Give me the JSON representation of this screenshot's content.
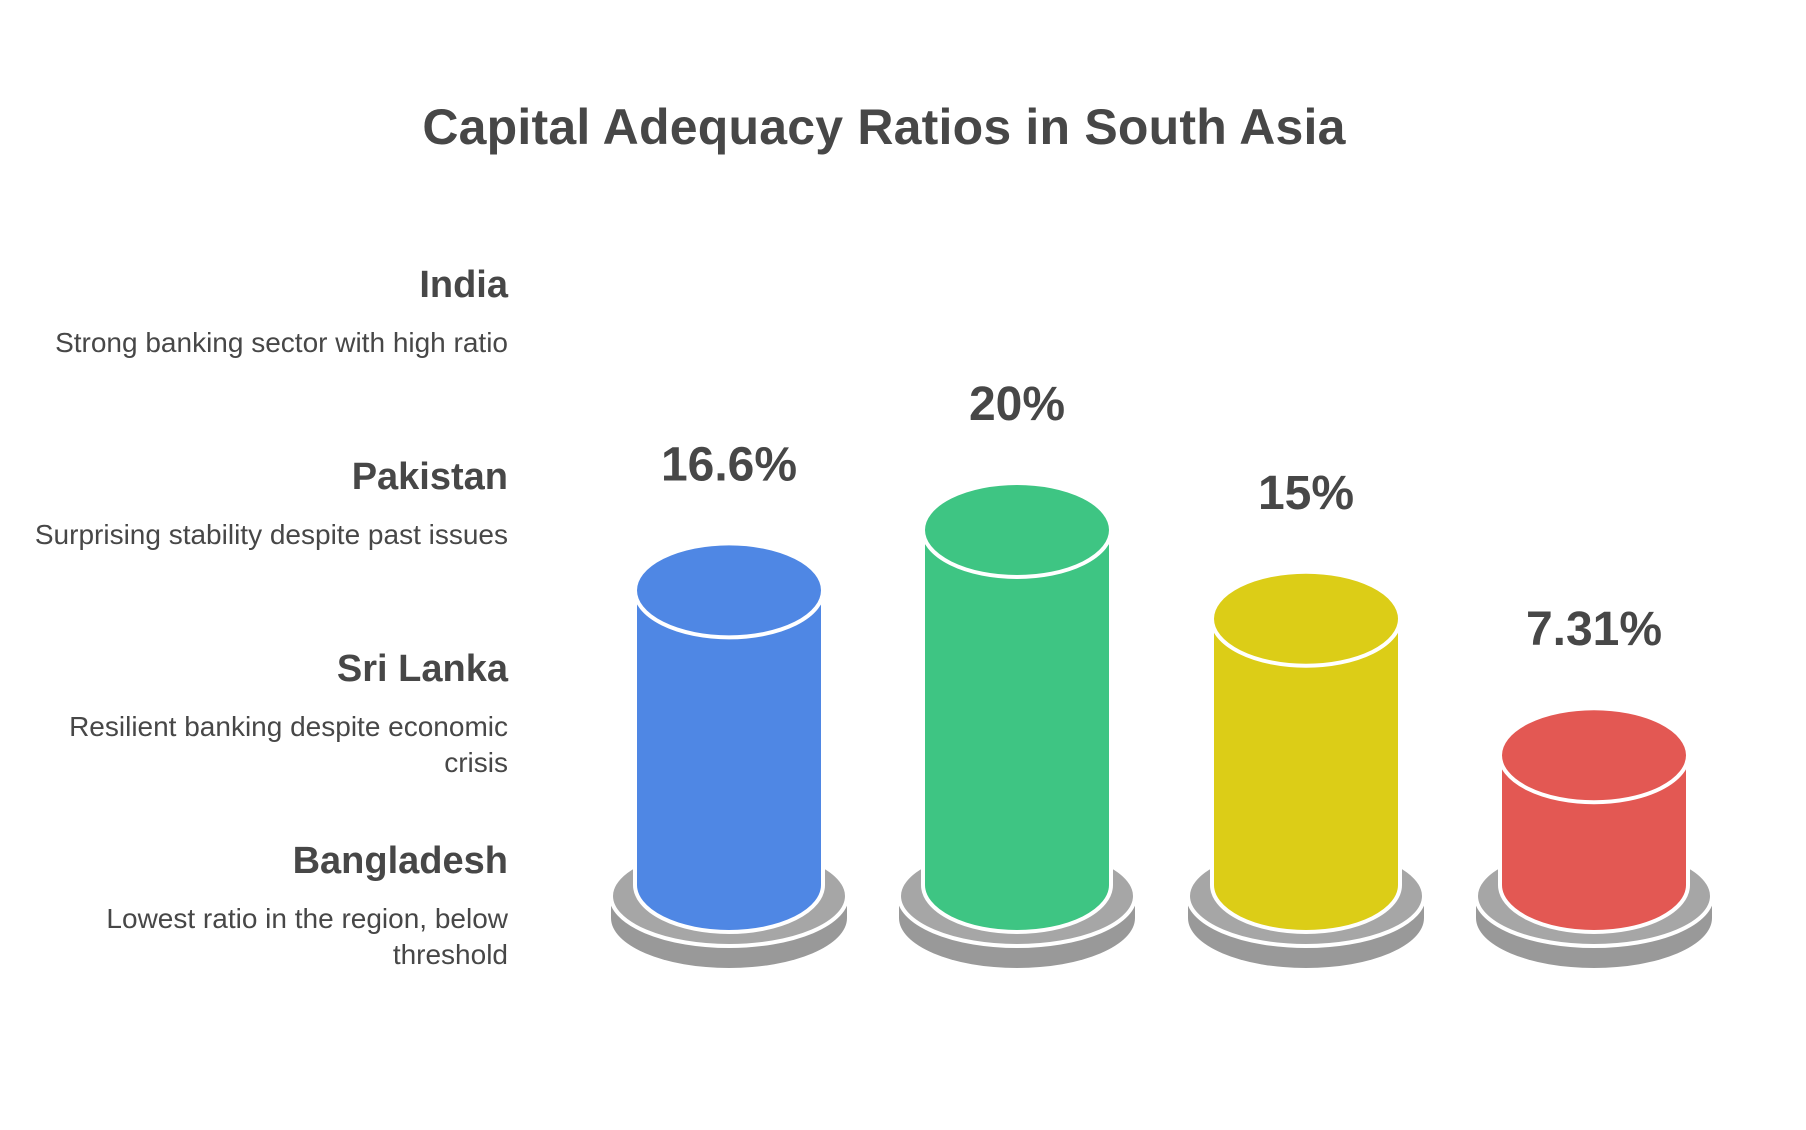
{
  "title": "Capital Adequacy Ratios in South Asia",
  "legend": [
    {
      "name": "India",
      "desc": "Strong banking sector with high ratio"
    },
    {
      "name": "Pakistan",
      "desc": "Surprising stability despite past issues"
    },
    {
      "name": "Sri Lanka",
      "desc": "Resilient banking despite economic crisis"
    },
    {
      "name": "Bangladesh",
      "desc": "Lowest ratio in the region, below threshold"
    }
  ],
  "chart_data": {
    "type": "bar",
    "title": "Capital Adequacy Ratios in South Asia",
    "categories": [
      "India",
      "Pakistan",
      "Sri Lanka",
      "Bangladesh"
    ],
    "values": [
      16.6,
      20,
      15,
      7.31
    ],
    "value_labels": [
      "16.6%",
      "20%",
      "15%",
      "7.31%"
    ],
    "colors": [
      "#4f87e4",
      "#3ec583",
      "#dccd17",
      "#e35853"
    ],
    "base_color": "#999999",
    "ylim": [
      0,
      20
    ],
    "grid": false,
    "xlabel": "",
    "ylabel": ""
  }
}
